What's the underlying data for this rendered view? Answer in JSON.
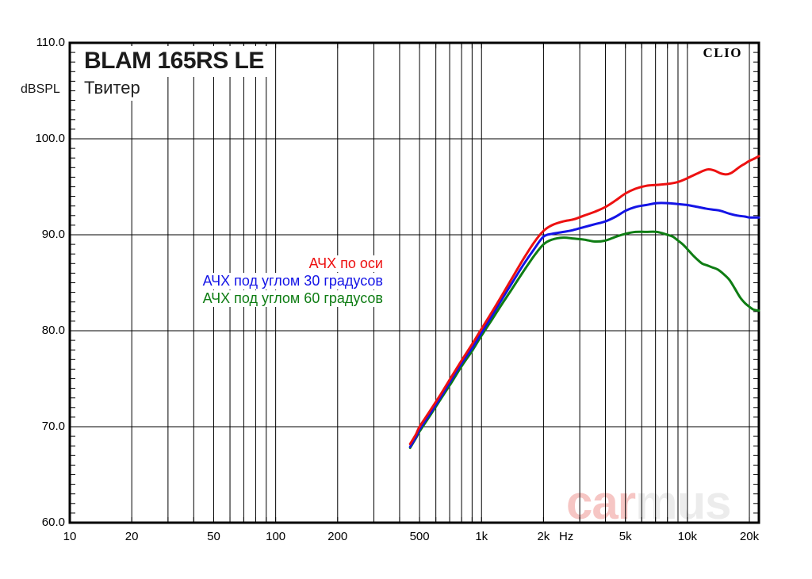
{
  "header": {
    "title": "BLAM 165RS LE",
    "subtitle": "Твитер",
    "brand": "CLIO"
  },
  "axis": {
    "y_unit": "dBSPL",
    "x_unit": "Hz"
  },
  "watermark": {
    "part1": "car",
    "part2": "mus",
    "part1_color": "#f6c6c4",
    "part2_color": "#ececec"
  },
  "colors": {
    "grid": "#000000",
    "on_axis": "#ed1111",
    "deg30": "#1414e6",
    "deg60": "#0f7d14"
  },
  "chart_data": {
    "type": "line",
    "title": "BLAM 165RS LE",
    "subtitle": "Твитер",
    "x_scale": "log",
    "x_unit": "Hz",
    "ylabel": "dBSPL",
    "x_range": [
      10,
      22240
    ],
    "y_range": [
      60,
      110
    ],
    "grid": "on",
    "legend_position": "inside-center-left",
    "x_gridlines": [
      20,
      30,
      40,
      50,
      60,
      70,
      80,
      90,
      100,
      200,
      300,
      400,
      500,
      600,
      700,
      800,
      900,
      1000,
      2000,
      3000,
      4000,
      5000,
      6000,
      7000,
      8000,
      9000,
      10000,
      20000
    ],
    "y_gridlines": [
      70,
      80,
      90,
      100
    ],
    "y_minor_tick_step": 1,
    "x_tick_labels": [
      {
        "f": 10,
        "label": "10"
      },
      {
        "f": 20,
        "label": "20"
      },
      {
        "f": 50,
        "label": "50"
      },
      {
        "f": 100,
        "label": "100"
      },
      {
        "f": 200,
        "label": "200"
      },
      {
        "f": 500,
        "label": "500"
      },
      {
        "f": 1000,
        "label": "1k"
      },
      {
        "f": 2000,
        "label": "2k"
      },
      {
        "f": 5000,
        "label": "5k"
      },
      {
        "f": 10000,
        "label": "10k"
      },
      {
        "f": 20000,
        "label": "20k"
      }
    ],
    "x_unit_label": {
      "label": "Hz",
      "f": 2580
    },
    "y_tick_labels": [
      {
        "v": 110,
        "label": "110.0"
      },
      {
        "v": 100,
        "label": "100.0"
      },
      {
        "v": 90,
        "label": "90.0"
      },
      {
        "v": 80,
        "label": "80.0"
      },
      {
        "v": 70,
        "label": "70.0"
      },
      {
        "v": 60,
        "label": "60.0"
      }
    ],
    "series": [
      {
        "name": "АЧХ по оси",
        "color": "#ed1111",
        "points": [
          [
            450,
            68.2
          ],
          [
            480,
            69.2
          ],
          [
            500,
            70.0
          ],
          [
            560,
            71.6
          ],
          [
            630,
            73.3
          ],
          [
            710,
            75.1
          ],
          [
            800,
            76.9
          ],
          [
            900,
            78.6
          ],
          [
            1000,
            80.2
          ],
          [
            1120,
            81.9
          ],
          [
            1250,
            83.6
          ],
          [
            1400,
            85.4
          ],
          [
            1600,
            87.5
          ],
          [
            1800,
            89.2
          ],
          [
            2000,
            90.4
          ],
          [
            2200,
            91.0
          ],
          [
            2500,
            91.4
          ],
          [
            2800,
            91.6
          ],
          [
            3150,
            92.0
          ],
          [
            3550,
            92.4
          ],
          [
            4000,
            92.9
          ],
          [
            4500,
            93.6
          ],
          [
            5000,
            94.3
          ],
          [
            5600,
            94.8
          ],
          [
            6300,
            95.1
          ],
          [
            7100,
            95.2
          ],
          [
            8000,
            95.3
          ],
          [
            9000,
            95.5
          ],
          [
            10000,
            95.9
          ],
          [
            11200,
            96.4
          ],
          [
            12500,
            96.8
          ],
          [
            13500,
            96.7
          ],
          [
            14500,
            96.4
          ],
          [
            15500,
            96.3
          ],
          [
            16500,
            96.5
          ],
          [
            18000,
            97.1
          ],
          [
            19000,
            97.4
          ],
          [
            20000,
            97.7
          ],
          [
            21000,
            97.9
          ],
          [
            22240,
            98.2
          ]
        ]
      },
      {
        "name": "АЧХ под углом 30 градусов",
        "color": "#1414e6",
        "points": [
          [
            450,
            67.9
          ],
          [
            480,
            68.9
          ],
          [
            500,
            69.7
          ],
          [
            560,
            71.3
          ],
          [
            630,
            73.0
          ],
          [
            710,
            74.8
          ],
          [
            800,
            76.6
          ],
          [
            900,
            78.2
          ],
          [
            1000,
            79.8
          ],
          [
            1120,
            81.5
          ],
          [
            1250,
            83.2
          ],
          [
            1400,
            84.9
          ],
          [
            1600,
            86.9
          ],
          [
            1800,
            88.5
          ],
          [
            2000,
            89.8
          ],
          [
            2200,
            90.1
          ],
          [
            2500,
            90.3
          ],
          [
            2800,
            90.5
          ],
          [
            3150,
            90.8
          ],
          [
            3550,
            91.1
          ],
          [
            4000,
            91.4
          ],
          [
            4500,
            91.9
          ],
          [
            5000,
            92.5
          ],
          [
            5600,
            92.9
          ],
          [
            6300,
            93.1
          ],
          [
            7100,
            93.3
          ],
          [
            8000,
            93.3
          ],
          [
            9000,
            93.2
          ],
          [
            10000,
            93.1
          ],
          [
            11200,
            92.9
          ],
          [
            12500,
            92.7
          ],
          [
            13500,
            92.6
          ],
          [
            14500,
            92.5
          ],
          [
            16000,
            92.2
          ],
          [
            17500,
            92.0
          ],
          [
            19000,
            91.9
          ],
          [
            20000,
            91.8
          ],
          [
            21000,
            91.8
          ],
          [
            22240,
            91.8
          ]
        ]
      },
      {
        "name": "АЧХ под углом 60 градусов",
        "color": "#0f7d14",
        "points": [
          [
            450,
            67.8
          ],
          [
            480,
            68.8
          ],
          [
            500,
            69.5
          ],
          [
            560,
            71.1
          ],
          [
            630,
            72.8
          ],
          [
            710,
            74.5
          ],
          [
            800,
            76.3
          ],
          [
            900,
            77.9
          ],
          [
            1000,
            79.5
          ],
          [
            1120,
            81.1
          ],
          [
            1250,
            82.7
          ],
          [
            1400,
            84.3
          ],
          [
            1600,
            86.2
          ],
          [
            1800,
            87.8
          ],
          [
            2000,
            89.0
          ],
          [
            2200,
            89.5
          ],
          [
            2500,
            89.7
          ],
          [
            2800,
            89.6
          ],
          [
            3150,
            89.5
          ],
          [
            3550,
            89.3
          ],
          [
            4000,
            89.4
          ],
          [
            4500,
            89.8
          ],
          [
            5000,
            90.1
          ],
          [
            5600,
            90.3
          ],
          [
            6300,
            90.3
          ],
          [
            7100,
            90.3
          ],
          [
            8000,
            90.0
          ],
          [
            8500,
            89.8
          ],
          [
            9000,
            89.4
          ],
          [
            9500,
            89.0
          ],
          [
            10000,
            88.5
          ],
          [
            10600,
            87.9
          ],
          [
            11200,
            87.4
          ],
          [
            11800,
            87.0
          ],
          [
            12500,
            86.8
          ],
          [
            13200,
            86.6
          ],
          [
            14000,
            86.4
          ],
          [
            15000,
            85.9
          ],
          [
            16000,
            85.3
          ],
          [
            17000,
            84.4
          ],
          [
            18000,
            83.5
          ],
          [
            19000,
            82.9
          ],
          [
            20000,
            82.5
          ],
          [
            21000,
            82.2
          ],
          [
            22240,
            82.1
          ]
        ]
      }
    ]
  }
}
